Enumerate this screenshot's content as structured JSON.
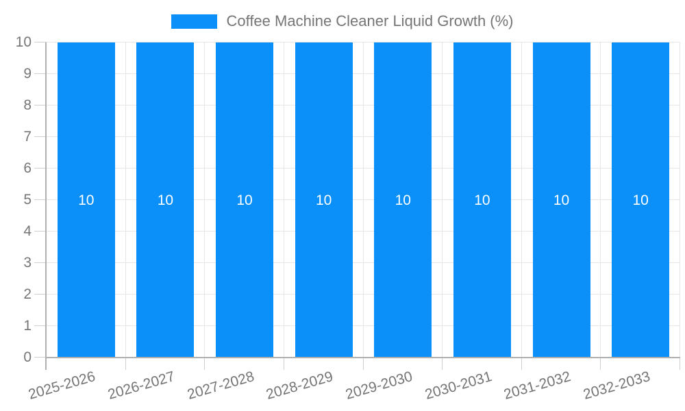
{
  "legend": {
    "label": "Coffee Machine Cleaner Liquid Growth (%)",
    "swatch_color": "#0a90f8"
  },
  "chart_data": {
    "type": "bar",
    "title": "Coffee Machine Cleaner Liquid Growth (%)",
    "categories": [
      "2025-2026",
      "2026-2027",
      "2027-2028",
      "2028-2029",
      "2029-2030",
      "2030-2031",
      "2031-2032",
      "2032-2033"
    ],
    "series": [
      {
        "name": "Coffee Machine Cleaner Liquid Growth (%)",
        "values": [
          10,
          10,
          10,
          10,
          10,
          10,
          10,
          10
        ]
      }
    ],
    "bar_labels": [
      "10",
      "10",
      "10",
      "10",
      "10",
      "10",
      "10",
      "10"
    ],
    "xlabel": "",
    "ylabel": "",
    "ylim": [
      0,
      10
    ],
    "yticks": [
      0,
      1,
      2,
      3,
      4,
      5,
      6,
      7,
      8,
      9,
      10
    ],
    "grid": true,
    "legend_position": "top",
    "colors": {
      "bar": "#0a90f8",
      "bar_label": "#ffffff",
      "axis_text": "#757575",
      "gridline": "#e6e6e6",
      "axis_line": "#b0b0b0",
      "tick": "#cfcfcf",
      "background": "#ffffff"
    }
  }
}
